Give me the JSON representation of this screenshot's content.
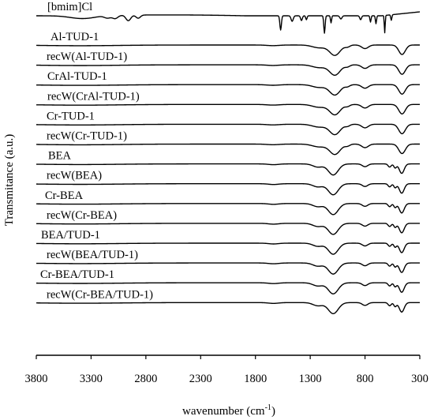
{
  "chart_data": {
    "type": "line",
    "title": "",
    "xlabel": "wavenumber (cm-1)",
    "xlabel_base": "wavenumber (cm",
    "xlabel_sup": "-1",
    "xlabel_close": ")",
    "ylabel": "Transmitance (a.u.)",
    "xlim": [
      3800,
      300
    ],
    "x_reversed": true,
    "xticks": [
      3800,
      3300,
      2800,
      2300,
      1800,
      1300,
      800,
      300
    ],
    "y_ticks_shown": false,
    "grid": false,
    "legend": "none",
    "series": [
      {
        "name": "[bmim]Cl",
        "kind": "il"
      },
      {
        "name": "Al-TUD-1",
        "kind": "tud"
      },
      {
        "name": "recW(Al-TUD-1)",
        "kind": "tud"
      },
      {
        "name": "CrAl-TUD-1",
        "kind": "tud"
      },
      {
        "name": "recW(CrAl-TUD-1)",
        "kind": "tud"
      },
      {
        "name": "Cr-TUD-1",
        "kind": "tud"
      },
      {
        "name": "recW(Cr-TUD-1)",
        "kind": "tud"
      },
      {
        "name": "BEA",
        "kind": "bea"
      },
      {
        "name": "recW(BEA)",
        "kind": "bea"
      },
      {
        "name": "Cr-BEA",
        "kind": "bea"
      },
      {
        "name": "recW(Cr-BEA)",
        "kind": "bea"
      },
      {
        "name": "BEA/TUD-1",
        "kind": "bea"
      },
      {
        "name": "recW(BEA/TUD-1)",
        "kind": "bea"
      },
      {
        "name": "Cr-BEA/TUD-1",
        "kind": "bea"
      },
      {
        "name": "recW(Cr-BEA/TUD-1)",
        "kind": "bea"
      }
    ]
  }
}
